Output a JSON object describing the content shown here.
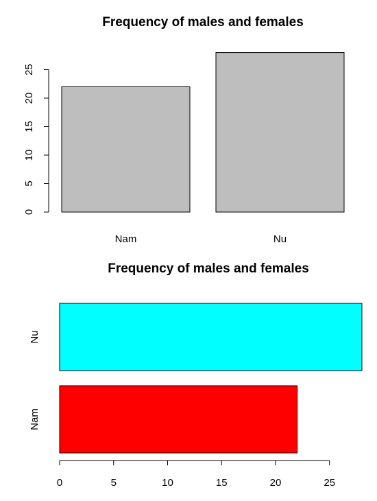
{
  "chart_data": [
    {
      "type": "bar",
      "orientation": "vertical",
      "title": "Frequency of males and females",
      "categories": [
        "Nam",
        "Nu"
      ],
      "values": [
        22,
        28
      ],
      "ylim": [
        0,
        28
      ],
      "yticks": [
        "0",
        "5",
        "10",
        "15",
        "20",
        "25"
      ],
      "colors": [
        "#bebebe",
        "#bebebe"
      ],
      "grid": false
    },
    {
      "type": "bar",
      "orientation": "horizontal",
      "title": "Frequency of males and females",
      "categories": [
        "Nam",
        "Nu"
      ],
      "values": [
        22,
        28
      ],
      "xlim": [
        0,
        28
      ],
      "xticks": [
        "0",
        "5",
        "10",
        "15",
        "20",
        "25"
      ],
      "colors": [
        "#ff0000",
        "#00ffff"
      ],
      "grid": false
    }
  ]
}
